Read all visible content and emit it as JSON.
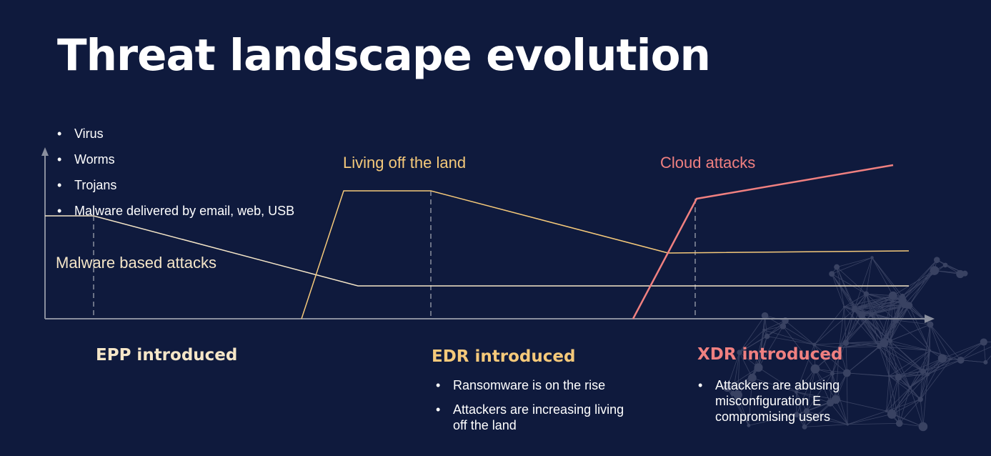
{
  "slide": {
    "title": "Threat landscape evolution"
  },
  "colors": {
    "background": "#0f1a3d",
    "malware": "#f5e6c8",
    "living_off_land": "#f5c97a",
    "cloud": "#f08080",
    "axis": "#8a8f9e",
    "globe": "#6c7390"
  },
  "malware_section": {
    "bullets": [
      "Virus",
      "Worms",
      "Trojans",
      "Malware delivered by email, web, USB"
    ],
    "label": "Malware based attacks"
  },
  "living_off_land": {
    "label": "Living off the land"
  },
  "cloud_attacks": {
    "label": "Cloud attacks"
  },
  "milestones": {
    "epp": {
      "label": "EPP introduced"
    },
    "edr": {
      "label": "EDR introduced",
      "bullets": [
        "Ransomware is on the rise",
        "Attackers are increasing living off the land"
      ]
    },
    "xdr": {
      "label": "XDR introduced",
      "bullets": [
        "Attackers are abusing misconfiguration E compromising users"
      ]
    }
  }
}
